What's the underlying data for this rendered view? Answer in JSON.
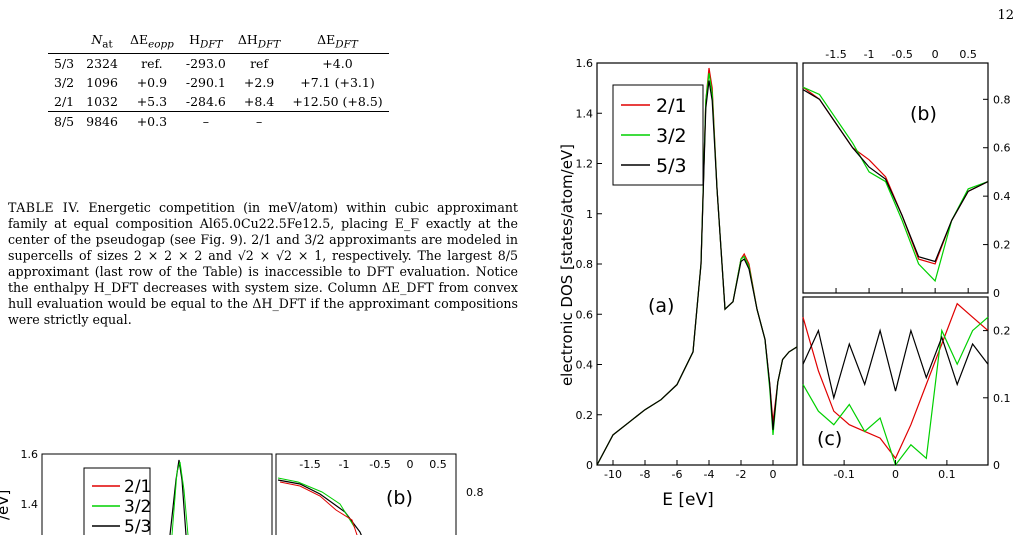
{
  "page_number": "12",
  "table": {
    "headers": [
      "",
      "N_at",
      "ΔE_eopp",
      "H_DFT",
      "ΔH_DFT",
      "ΔE_DFT"
    ],
    "rows": [
      [
        "5/3",
        "2324",
        "ref.",
        "-293.0",
        "ref",
        "+4.0"
      ],
      [
        "3/2",
        "1096",
        "+0.9",
        "-290.1",
        "+2.9",
        "+7.1 (+3.1)"
      ],
      [
        "2/1",
        "1032",
        "+5.3",
        "-284.6",
        "+8.4",
        "+12.50 (+8.5)"
      ],
      [
        "8/5",
        "9846",
        "+0.3",
        "–",
        "–",
        ""
      ]
    ]
  },
  "caption": {
    "label": "TABLE IV.",
    "text": "Energetic competition (in meV/atom) within cubic approximant family at equal composition Al65.0Cu22.5Fe12.5, placing E_F exactly at the center of the pseudogap (see Fig. 9). 2/1 and 3/2 approximants are modeled in supercells of sizes 2 × 2 × 2 and √2 × √2 × 1, respectively. The largest 8/5 approximant (last row of the Table) is inaccessible to DFT evaluation. Notice the enthalpy H_DFT decreases with system size. Column ΔE_DFT from convex hull evaluation would be equal to the ΔH_DFT if the approximant compositions were strictly equal."
  },
  "colors": {
    "s21": "#e00000",
    "s32": "#00d000",
    "s53": "#000000"
  },
  "chart_data": [
    {
      "type": "line",
      "panel": "(a)",
      "xlabel": "E [eV]",
      "ylabel": "electronic DOS [states/atom/eV]",
      "xlim": [
        -11,
        1.5
      ],
      "ylim": [
        0,
        1.6
      ],
      "xticks": [
        "-10",
        "-8",
        "-6",
        "-4",
        "-2",
        "0"
      ],
      "yticks": [
        "0",
        "0.2",
        "0.4",
        "0.6",
        "0.8",
        "1",
        "1.2",
        "1.4",
        "1.6"
      ],
      "legend": [
        "2/1",
        "3/2",
        "5/3"
      ],
      "legend_position": "top-left",
      "x": [
        -11,
        -10,
        -9,
        -8,
        -7,
        -6,
        -5,
        -4.5,
        -4.2,
        -4,
        -3.8,
        -3.5,
        -3,
        -2.5,
        -2,
        -1.8,
        -1.5,
        -1,
        -0.5,
        -0.2,
        0,
        0.3,
        0.6,
        1,
        1.5
      ],
      "series": [
        {
          "name": "2/1",
          "values": [
            0.0,
            0.12,
            0.17,
            0.22,
            0.26,
            0.32,
            0.45,
            0.8,
            1.45,
            1.58,
            1.5,
            1.1,
            0.62,
            0.65,
            0.82,
            0.84,
            0.8,
            0.62,
            0.5,
            0.32,
            0.17,
            0.33,
            0.42,
            0.45,
            0.47
          ]
        },
        {
          "name": "3/2",
          "values": [
            0.0,
            0.12,
            0.17,
            0.22,
            0.26,
            0.32,
            0.45,
            0.8,
            1.45,
            1.56,
            1.48,
            1.1,
            0.62,
            0.65,
            0.82,
            0.83,
            0.79,
            0.62,
            0.5,
            0.3,
            0.12,
            0.33,
            0.42,
            0.45,
            0.47
          ]
        },
        {
          "name": "5/3",
          "values": [
            0.0,
            0.12,
            0.17,
            0.22,
            0.26,
            0.32,
            0.45,
            0.8,
            1.42,
            1.53,
            1.45,
            1.1,
            0.62,
            0.65,
            0.81,
            0.82,
            0.78,
            0.62,
            0.5,
            0.32,
            0.14,
            0.33,
            0.42,
            0.45,
            0.47
          ]
        }
      ]
    },
    {
      "type": "line",
      "panel": "(b)",
      "xlim": [
        -2,
        0.8
      ],
      "ylim": [
        0,
        0.95
      ],
      "xticks": [
        "-1.5",
        "-1",
        "-0.5",
        "0",
        "0.5"
      ],
      "yticks": [
        "0",
        "0.2",
        "0.4",
        "0.6",
        "0.8"
      ],
      "x": [
        -2,
        -1.75,
        -1.5,
        -1.25,
        -1,
        -0.75,
        -0.5,
        -0.25,
        0,
        0.25,
        0.5,
        0.8
      ],
      "series": [
        {
          "name": "2/1",
          "values": [
            0.85,
            0.8,
            0.7,
            0.6,
            0.55,
            0.48,
            0.32,
            0.14,
            0.12,
            0.3,
            0.42,
            0.46
          ]
        },
        {
          "name": "3/2",
          "values": [
            0.85,
            0.82,
            0.72,
            0.62,
            0.5,
            0.46,
            0.3,
            0.12,
            0.05,
            0.3,
            0.43,
            0.46
          ]
        },
        {
          "name": "5/3",
          "values": [
            0.84,
            0.8,
            0.7,
            0.6,
            0.52,
            0.47,
            0.32,
            0.15,
            0.13,
            0.3,
            0.42,
            0.46
          ]
        }
      ]
    },
    {
      "type": "line",
      "panel": "(c)",
      "xlim": [
        -0.18,
        0.18
      ],
      "ylim": [
        0,
        0.25
      ],
      "xticks": [
        "-0.1",
        "0",
        "0.1"
      ],
      "yticks": [
        "0",
        "0.1",
        "0.2"
      ],
      "x": [
        -0.18,
        -0.15,
        -0.12,
        -0.09,
        -0.06,
        -0.03,
        0,
        0.03,
        0.06,
        0.09,
        0.12,
        0.15,
        0.18
      ],
      "series": [
        {
          "name": "2/1",
          "values": [
            0.22,
            0.14,
            0.08,
            0.06,
            0.05,
            0.04,
            0.01,
            0.06,
            0.12,
            0.18,
            0.24,
            0.22,
            0.2
          ]
        },
        {
          "name": "3/2",
          "values": [
            0.12,
            0.08,
            0.06,
            0.09,
            0.05,
            0.07,
            0.0,
            0.03,
            0.01,
            0.2,
            0.15,
            0.2,
            0.22
          ]
        },
        {
          "name": "5/3",
          "values": [
            0.15,
            0.2,
            0.1,
            0.18,
            0.12,
            0.2,
            0.11,
            0.2,
            0.13,
            0.19,
            0.12,
            0.18,
            0.15
          ]
        }
      ]
    }
  ],
  "thumbnail": {
    "yticks": [
      "1.6",
      "1.4"
    ],
    "xticks": [
      "-1.5",
      "-1",
      "-0.5",
      "0",
      "0.5"
    ],
    "right_ytick": "0.8",
    "legend": [
      "2/1",
      "3/2",
      "5/3"
    ],
    "panel_label": "(b)",
    "ylabel_fragment": "/eV]"
  }
}
